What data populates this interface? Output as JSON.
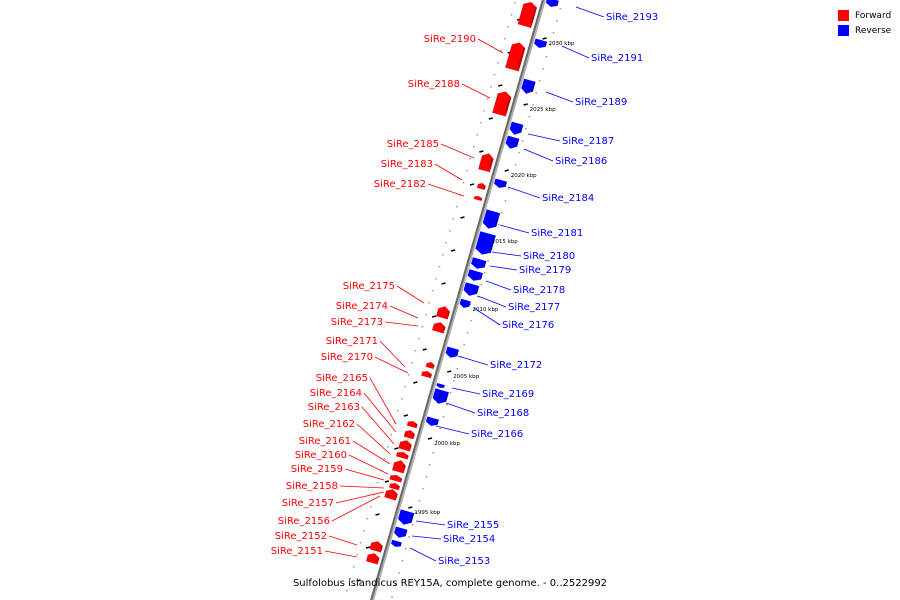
{
  "caption": "Sulfolobus islandicus REY15A, complete genome. - 0..2522992",
  "legend": [
    {
      "label": "Forward",
      "color": "#ff0000"
    },
    {
      "label": "Reverse",
      "color": "#0000ff"
    }
  ],
  "ticks": [
    "2030 kbp",
    "2025 kbp",
    "2020 kbp",
    "2015 kbp",
    "2010 kbp",
    "2005 kbp",
    "2000 kbp",
    "1995 kbp"
  ],
  "forward_genes": [
    "SiRe_2190",
    "SiRe_2188",
    "SiRe_2185",
    "SiRe_2183",
    "SiRe_2182",
    "SiRe_2175",
    "SiRe_2174",
    "SiRe_2173",
    "SiRe_2171",
    "SiRe_2170",
    "SiRe_2165",
    "SiRe_2164",
    "SiRe_2163",
    "SiRe_2162",
    "SiRe_2161",
    "SiRe_2160",
    "SiRe_2159",
    "SiRe_2158",
    "SiRe_2157",
    "SiRe_2156",
    "SiRe_2152",
    "SiRe_2151"
  ],
  "reverse_genes": [
    "SiRe_2193",
    "SiRe_2191",
    "SiRe_2189",
    "SiRe_2187",
    "SiRe_2186",
    "SiRe_2184",
    "SiRe_2181",
    "SiRe_2180",
    "SiRe_2179",
    "SiRe_2178",
    "SiRe_2177",
    "SiRe_2176",
    "SiRe_2172",
    "SiRe_2169",
    "SiRe_2168",
    "SiRe_2166",
    "SiRe_2155",
    "SiRe_2154",
    "SiRe_2153"
  ]
}
